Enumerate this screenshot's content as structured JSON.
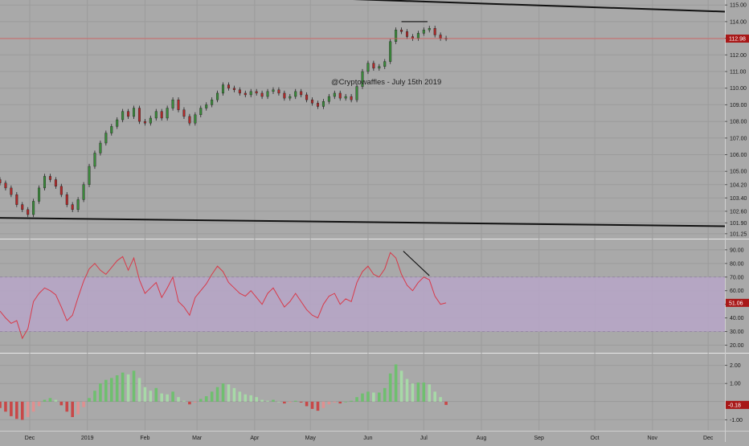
{
  "chart_data": [
    {
      "type": "candlestick",
      "panel": "price",
      "x": [
        "2018-11-15",
        "2018-11-18",
        "2018-11-21",
        "2018-11-24",
        "2018-11-27",
        "2018-11-30",
        "2018-12-03",
        "2018-12-06",
        "2018-12-09",
        "2018-12-12",
        "2018-12-15",
        "2018-12-18",
        "2018-12-21",
        "2018-12-24",
        "2018-12-27",
        "2018-12-30",
        "2019-01-02",
        "2019-01-05",
        "2019-01-08",
        "2019-01-11",
        "2019-01-14",
        "2019-01-17",
        "2019-01-20",
        "2019-01-23",
        "2019-01-26",
        "2019-01-29",
        "2019-02-01",
        "2019-02-04",
        "2019-02-07",
        "2019-02-10",
        "2019-02-13",
        "2019-02-16",
        "2019-02-19",
        "2019-02-22",
        "2019-02-25",
        "2019-02-28",
        "2019-03-03",
        "2019-03-06",
        "2019-03-09",
        "2019-03-12",
        "2019-03-15",
        "2019-03-18",
        "2019-03-21",
        "2019-03-24",
        "2019-03-27",
        "2019-03-30",
        "2019-04-02",
        "2019-04-05",
        "2019-04-08",
        "2019-04-11",
        "2019-04-14",
        "2019-04-17",
        "2019-04-20",
        "2019-04-23",
        "2019-04-26",
        "2019-04-29",
        "2019-05-02",
        "2019-05-05",
        "2019-05-08",
        "2019-05-11",
        "2019-05-14",
        "2019-05-17",
        "2019-05-20",
        "2019-05-23",
        "2019-05-26",
        "2019-05-29",
        "2019-06-01",
        "2019-06-04",
        "2019-06-07",
        "2019-06-10",
        "2019-06-13",
        "2019-06-16",
        "2019-06-19",
        "2019-06-22",
        "2019-06-25",
        "2019-06-28",
        "2019-07-01",
        "2019-07-04",
        "2019-07-07",
        "2019-07-10",
        "2019-07-13"
      ],
      "close": [
        104.3,
        104.0,
        103.6,
        103.0,
        102.7,
        102.4,
        103.2,
        104.0,
        104.7,
        104.5,
        104.1,
        103.6,
        103.0,
        102.7,
        103.3,
        104.2,
        105.3,
        106.1,
        106.7,
        107.3,
        107.7,
        108.1,
        108.6,
        108.3,
        108.8,
        108.0,
        107.9,
        108.2,
        108.6,
        108.2,
        108.8,
        109.3,
        108.7,
        108.3,
        107.9,
        108.4,
        108.8,
        109.0,
        109.3,
        109.7,
        110.2,
        110.0,
        109.9,
        109.7,
        109.6,
        109.8,
        109.7,
        109.5,
        109.8,
        109.9,
        109.7,
        109.4,
        109.5,
        109.8,
        109.6,
        109.3,
        109.1,
        108.9,
        109.2,
        109.5,
        109.7,
        109.4,
        109.5,
        109.3,
        110.1,
        111.0,
        111.5,
        111.2,
        111.3,
        111.6,
        112.8,
        113.5,
        113.4,
        113.1,
        113.0,
        113.3,
        113.5,
        113.6,
        113.2,
        113.0,
        112.98
      ],
      "last_price": "112.98",
      "ylim": [
        101.0,
        115.3
      ],
      "y_ticks": [
        "115.00",
        "114.00",
        "113.00",
        "112.00",
        "111.00",
        "110.00",
        "109.00",
        "108.00",
        "107.00",
        "106.00",
        "105.00",
        "104.20",
        "103.40",
        "102.60",
        "101.90",
        "101.25"
      ],
      "y_tick_values": [
        115.0,
        114.0,
        113.0,
        112.0,
        111.0,
        110.0,
        109.0,
        108.0,
        107.0,
        106.0,
        105.0,
        104.2,
        103.4,
        102.6,
        101.9,
        101.25
      ]
    },
    {
      "type": "line",
      "panel": "rsi",
      "x": [
        "2018-11-15",
        "2018-11-18",
        "2018-11-21",
        "2018-11-24",
        "2018-11-27",
        "2018-11-30",
        "2018-12-03",
        "2018-12-06",
        "2018-12-09",
        "2018-12-12",
        "2018-12-15",
        "2018-12-18",
        "2018-12-21",
        "2018-12-24",
        "2018-12-27",
        "2018-12-30",
        "2019-01-02",
        "2019-01-05",
        "2019-01-08",
        "2019-01-11",
        "2019-01-14",
        "2019-01-17",
        "2019-01-20",
        "2019-01-23",
        "2019-01-26",
        "2019-01-29",
        "2019-02-01",
        "2019-02-04",
        "2019-02-07",
        "2019-02-10",
        "2019-02-13",
        "2019-02-16",
        "2019-02-19",
        "2019-02-22",
        "2019-02-25",
        "2019-02-28",
        "2019-03-03",
        "2019-03-06",
        "2019-03-09",
        "2019-03-12",
        "2019-03-15",
        "2019-03-18",
        "2019-03-21",
        "2019-03-24",
        "2019-03-27",
        "2019-03-30",
        "2019-04-02",
        "2019-04-05",
        "2019-04-08",
        "2019-04-11",
        "2019-04-14",
        "2019-04-17",
        "2019-04-20",
        "2019-04-23",
        "2019-04-26",
        "2019-04-29",
        "2019-05-02",
        "2019-05-05",
        "2019-05-08",
        "2019-05-11",
        "2019-05-14",
        "2019-05-17",
        "2019-05-20",
        "2019-05-23",
        "2019-05-26",
        "2019-05-29",
        "2019-06-01",
        "2019-06-04",
        "2019-06-07",
        "2019-06-10",
        "2019-06-13",
        "2019-06-16",
        "2019-06-19",
        "2019-06-22",
        "2019-06-25",
        "2019-06-28",
        "2019-07-01",
        "2019-07-04",
        "2019-07-07",
        "2019-07-10",
        "2019-07-13"
      ],
      "values": [
        45,
        40,
        36,
        38,
        25,
        32,
        52,
        58,
        62,
        60,
        57,
        48,
        38,
        42,
        55,
        67,
        76,
        80,
        75,
        72,
        77,
        82,
        85,
        75,
        84,
        68,
        58,
        62,
        66,
        55,
        62,
        70,
        52,
        48,
        42,
        55,
        60,
        65,
        72,
        78,
        74,
        66,
        62,
        58,
        56,
        60,
        55,
        50,
        58,
        62,
        55,
        48,
        52,
        58,
        52,
        46,
        42,
        40,
        50,
        56,
        58,
        50,
        54,
        52,
        66,
        74,
        78,
        72,
        70,
        76,
        88,
        84,
        72,
        64,
        60,
        66,
        70,
        68,
        56,
        50,
        51.06
      ],
      "last_value": "51.06",
      "band": [
        30,
        70
      ],
      "ylim": [
        15,
        97
      ],
      "y_ticks": [
        "90.00",
        "80.00",
        "70.00",
        "60.00",
        "50.00",
        "40.00",
        "30.00",
        "20.00"
      ],
      "y_tick_values": [
        90,
        80,
        70,
        60,
        50,
        40,
        30,
        20
      ]
    },
    {
      "type": "bar",
      "panel": "histogram",
      "x": [
        "2018-11-15",
        "2018-11-18",
        "2018-11-21",
        "2018-11-24",
        "2018-11-27",
        "2018-11-30",
        "2018-12-03",
        "2018-12-06",
        "2018-12-09",
        "2018-12-12",
        "2018-12-15",
        "2018-12-18",
        "2018-12-21",
        "2018-12-24",
        "2018-12-27",
        "2018-12-30",
        "2019-01-02",
        "2019-01-05",
        "2019-01-08",
        "2019-01-11",
        "2019-01-14",
        "2019-01-17",
        "2019-01-20",
        "2019-01-23",
        "2019-01-26",
        "2019-01-29",
        "2019-02-01",
        "2019-02-04",
        "2019-02-07",
        "2019-02-10",
        "2019-02-13",
        "2019-02-16",
        "2019-02-19",
        "2019-02-22",
        "2019-02-25",
        "2019-02-28",
        "2019-03-03",
        "2019-03-06",
        "2019-03-09",
        "2019-03-12",
        "2019-03-15",
        "2019-03-18",
        "2019-03-21",
        "2019-03-24",
        "2019-03-27",
        "2019-03-30",
        "2019-04-02",
        "2019-04-05",
        "2019-04-08",
        "2019-04-11",
        "2019-04-14",
        "2019-04-17",
        "2019-04-20",
        "2019-04-23",
        "2019-04-26",
        "2019-04-29",
        "2019-05-02",
        "2019-05-05",
        "2019-05-08",
        "2019-05-11",
        "2019-05-14",
        "2019-05-17",
        "2019-05-20",
        "2019-05-23",
        "2019-05-26",
        "2019-05-29",
        "2019-06-01",
        "2019-06-04",
        "2019-06-07",
        "2019-06-10",
        "2019-06-13",
        "2019-06-16",
        "2019-06-19",
        "2019-06-22",
        "2019-06-25",
        "2019-06-28",
        "2019-07-01",
        "2019-07-04",
        "2019-07-07",
        "2019-07-10",
        "2019-07-13"
      ],
      "values": [
        -0.35,
        -0.55,
        -0.8,
        -0.95,
        -1.0,
        -0.85,
        -0.55,
        -0.25,
        0.1,
        0.2,
        0.1,
        -0.2,
        -0.55,
        -0.85,
        -0.7,
        -0.3,
        0.2,
        0.6,
        1.0,
        1.2,
        1.3,
        1.45,
        1.6,
        1.5,
        1.7,
        1.3,
        0.8,
        0.6,
        0.75,
        0.45,
        0.4,
        0.55,
        0.25,
        0.05,
        -0.15,
        -0.05,
        0.15,
        0.3,
        0.55,
        0.8,
        1.0,
        0.95,
        0.75,
        0.55,
        0.4,
        0.35,
        0.25,
        0.1,
        0.05,
        0.1,
        0.0,
        -0.1,
        -0.05,
        0.05,
        -0.05,
        -0.25,
        -0.4,
        -0.5,
        -0.35,
        -0.15,
        -0.05,
        -0.1,
        0.0,
        0.05,
        0.25,
        0.45,
        0.55,
        0.5,
        0.5,
        0.75,
        1.55,
        2.05,
        1.7,
        1.25,
        1.0,
        1.05,
        1.05,
        0.95,
        0.55,
        0.25,
        -0.18
      ],
      "last_value": "-0.18",
      "ylim": [
        -1.6,
        2.6
      ],
      "y_ticks": [
        "2.00",
        "1.00",
        "-1.00"
      ],
      "y_tick_values": [
        2.0,
        1.0,
        -1.0
      ]
    }
  ],
  "x_axis": {
    "labels": [
      "Dec",
      "2019",
      "Feb",
      "Mar",
      "Apr",
      "May",
      "Jun",
      "Jul",
      "Aug",
      "Sep",
      "Oct",
      "Nov",
      "Dec"
    ],
    "dates": [
      "2018-12-01",
      "2019-01-01",
      "2019-02-01",
      "2019-03-01",
      "2019-04-01",
      "2019-05-01",
      "2019-06-01",
      "2019-07-01",
      "2019-08-01",
      "2019-09-01",
      "2019-10-01",
      "2019-11-01",
      "2019-12-01"
    ],
    "range": [
      "2018-11-15",
      "2019-12-10"
    ]
  },
  "annotations": {
    "watermark": "@Cryptowaffles - July 15th 2019",
    "trendlines": [
      {
        "panel": "price",
        "from": [
          "2019-05-10",
          115.4
        ],
        "to": [
          "2019-12-10",
          114.6
        ]
      },
      {
        "panel": "price",
        "from": [
          "2018-11-15",
          102.2
        ],
        "to": [
          "2019-12-10",
          101.7
        ]
      },
      {
        "panel": "price",
        "from": [
          "2019-06-19",
          114.0
        ],
        "to": [
          "2019-07-03",
          114.0
        ]
      },
      {
        "panel": "rsi",
        "from": [
          "2019-06-20",
          89
        ],
        "to": [
          "2019-07-04",
          71
        ]
      }
    ]
  },
  "colors": {
    "background": "#a9a9a9",
    "up": "#3a8a3a",
    "down": "#b02a2a",
    "rsi_line": "#d83a4a",
    "rsi_band": "#b7a6c8",
    "price_line": "#e05a5a",
    "label_bg": "#a81818",
    "hist_up": "#6fbf6f",
    "hist_down": "#c84848"
  }
}
